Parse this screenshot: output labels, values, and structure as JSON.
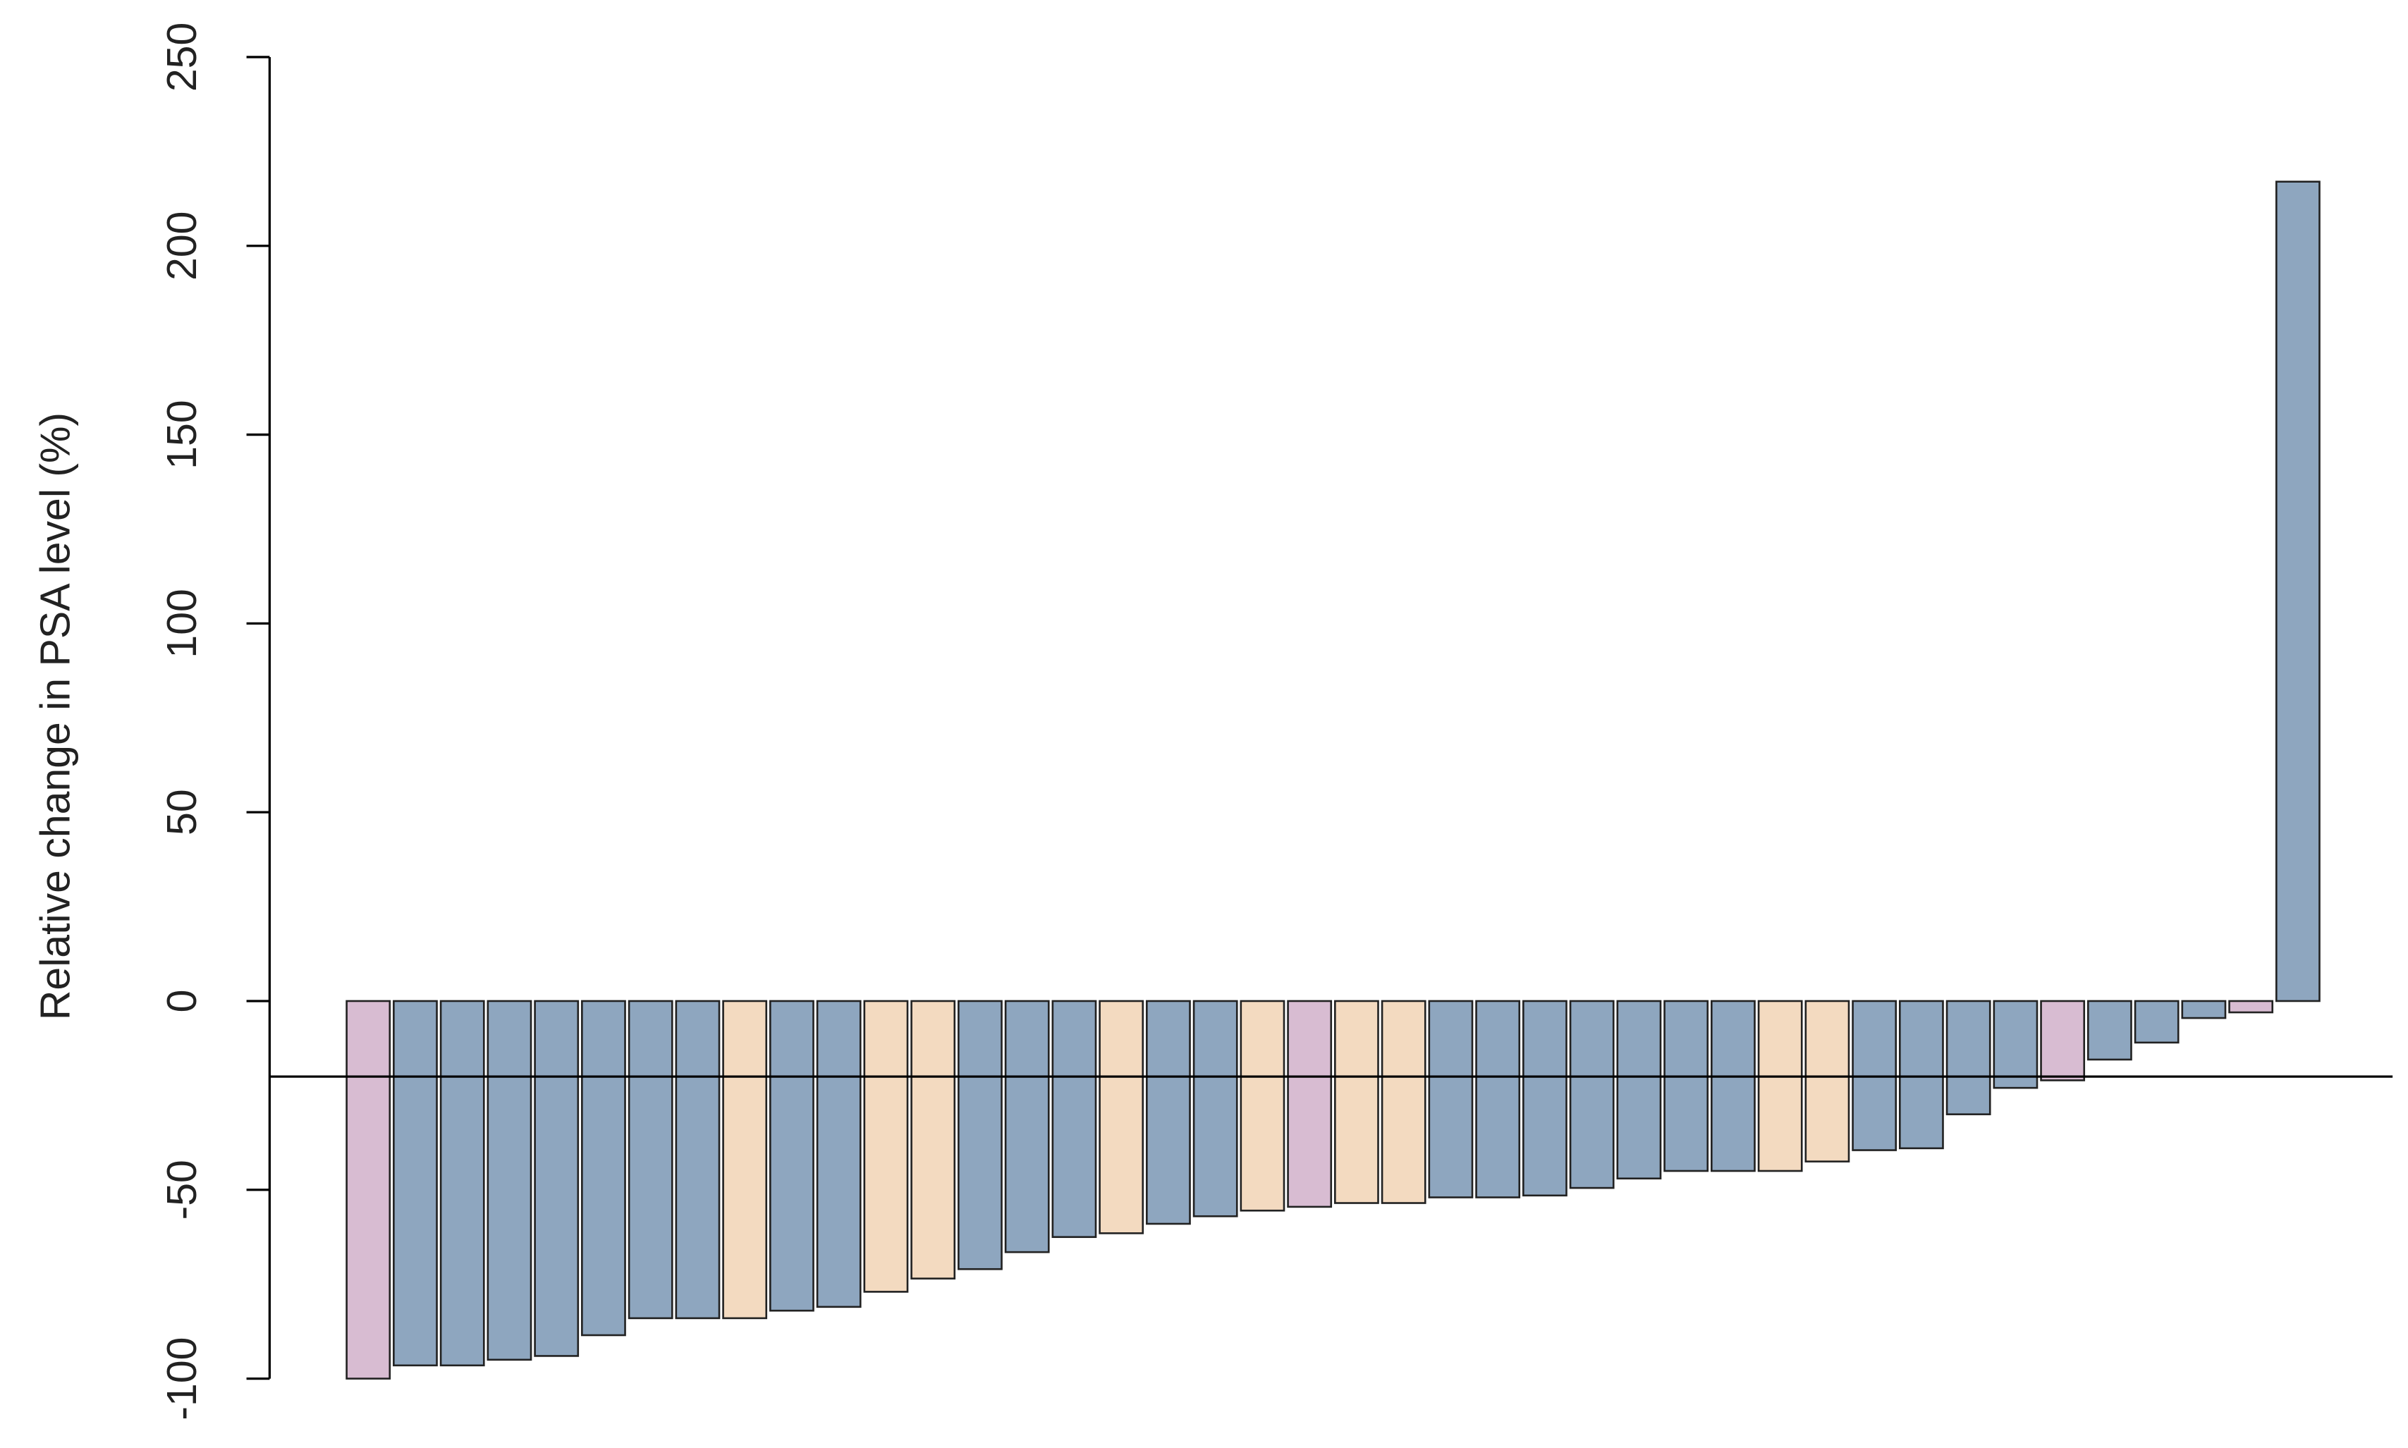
{
  "chart_data": {
    "type": "bar",
    "ylabel": "Relative change in PSA level (%)",
    "categories": [
      null,
      null,
      null,
      null,
      null,
      null,
      null,
      null,
      null,
      null,
      null,
      null,
      null,
      null,
      null,
      null,
      null,
      null,
      null,
      null,
      null,
      null,
      null,
      null,
      null,
      null,
      null,
      null,
      null,
      null,
      null,
      null,
      null,
      null,
      null,
      null,
      null,
      null,
      null,
      null,
      null,
      null
    ],
    "values": [
      -100,
      -96.5,
      -96.5,
      -95,
      -94,
      -88.5,
      -84,
      -84,
      -84,
      -82,
      -81,
      -77,
      -73.5,
      -71,
      -66.5,
      -62.5,
      -61.5,
      -59,
      -57,
      -55.5,
      -54.5,
      -53.5,
      -53.5,
      -52,
      -52,
      -51.5,
      -49.5,
      -47,
      -45,
      -45,
      -45,
      -42.5,
      -39.5,
      -39,
      -30,
      -23,
      -21,
      -15.5,
      -11,
      -4.5,
      -3,
      217
    ],
    "colors": [
      "#d8bcd2",
      "#8ea6bf",
      "#8ea6bf",
      "#8ea6bf",
      "#8ea6bf",
      "#8ea6bf",
      "#8ea6bf",
      "#8ea6bf",
      "#f3dac0",
      "#8ea6bf",
      "#8ea6bf",
      "#f3dac0",
      "#f3dac0",
      "#8ea6bf",
      "#8ea6bf",
      "#8ea6bf",
      "#f3dac0",
      "#8ea6bf",
      "#8ea6bf",
      "#f3dac0",
      "#d8bcd2",
      "#f3dac0",
      "#f3dac0",
      "#8ea6bf",
      "#8ea6bf",
      "#8ea6bf",
      "#8ea6bf",
      "#8ea6bf",
      "#8ea6bf",
      "#8ea6bf",
      "#f3dac0",
      "#f3dac0",
      "#8ea6bf",
      "#8ea6bf",
      "#8ea6bf",
      "#8ea6bf",
      "#d8bcd2",
      "#8ea6bf",
      "#8ea6bf",
      "#8ea6bf",
      "#d8bcd2",
      "#8ea6bf"
    ],
    "reference_line": -20,
    "ylim": [
      -100,
      250
    ],
    "yticks": [
      -100,
      -50,
      0,
      50,
      100,
      150,
      200,
      250
    ],
    "grid": false
  }
}
